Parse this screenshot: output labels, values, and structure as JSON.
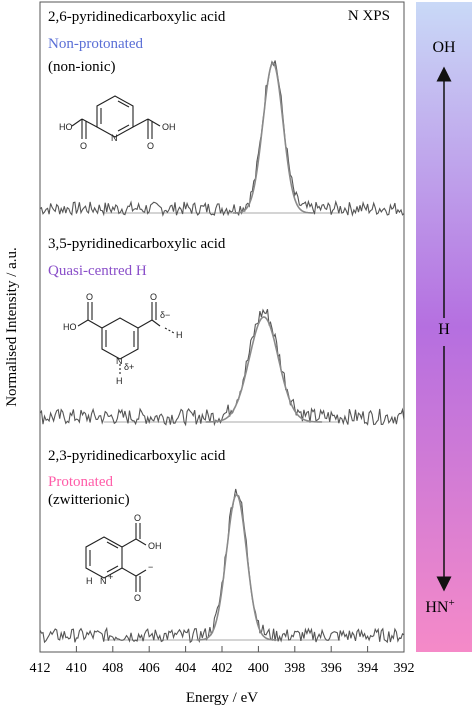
{
  "chart_data": {
    "type": "line",
    "plot_label": "N XPS",
    "xlabel": "Energy / eV",
    "ylabel": "Normalised Intensity / a.u.",
    "xlim": [
      412,
      392
    ],
    "x_reversed": true,
    "xticks": [
      412,
      410,
      408,
      406,
      404,
      402,
      400,
      398,
      396,
      394,
      392
    ],
    "panels": [
      {
        "compound": "2,6-pyridinedicarboxylic acid",
        "state": "Non-protonated",
        "state_color": "#5a6fd6",
        "note": "(non-ionic)",
        "peak_center": 399.2,
        "peak_width": 0.55,
        "baseline": 0.03,
        "peak_height": 1.0,
        "structure": {
          "labels": [
            "HO",
            "OH",
            "O",
            "O",
            "N"
          ]
        }
      },
      {
        "compound": "3,5-pyridinedicarboxylic acid",
        "state": "Quasi-centred H",
        "state_color": "#8a4fc9",
        "note": "",
        "peak_center": 399.7,
        "peak_width": 0.8,
        "baseline": 0.03,
        "peak_height": 0.6,
        "structure": {
          "labels": [
            "HO",
            "O",
            "O",
            "δ−",
            "H",
            "N",
            "δ+",
            "H"
          ]
        }
      },
      {
        "compound": "2,3-pyridinedicarboxylic acid",
        "state": "Protonated",
        "state_color": "#ff5ca8",
        "note": "(zwitterionic)",
        "peak_center": 401.2,
        "peak_width": 0.55,
        "baseline": 0.03,
        "peak_height": 0.95,
        "structure": {
          "labels": [
            "OH",
            "O",
            "O",
            "−",
            "N",
            "H",
            "+"
          ]
        }
      }
    ]
  },
  "sidebar": {
    "top_label": "OH",
    "middle_label": "H",
    "bottom_label": "HN",
    "bottom_sup": "+",
    "gradient_top": "#c9d9f7",
    "gradient_mid": "#b56fe0",
    "gradient_bottom": "#f58ac8"
  }
}
